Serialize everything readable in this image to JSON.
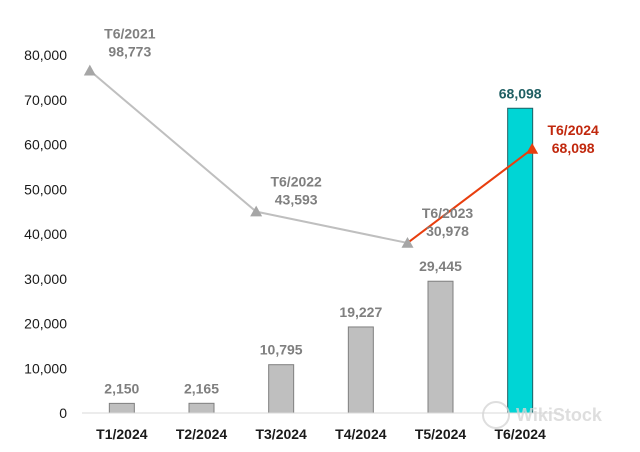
{
  "chart_data": {
    "type": "bar",
    "categories": [
      "T1/2024",
      "T2/2024",
      "T3/2024",
      "T4/2024",
      "T5/2024",
      "T6/2024"
    ],
    "ylim": [
      0,
      80000
    ],
    "yticks": [
      0,
      10000,
      20000,
      30000,
      40000,
      50000,
      60000,
      70000,
      80000
    ],
    "ytick_labels": [
      "0",
      "10,000",
      "20,000",
      "30,000",
      "40,000",
      "50,000",
      "60,000",
      "70,000",
      "80,000"
    ],
    "grid": false,
    "bars": {
      "values": [
        2150,
        2165,
        10795,
        19227,
        29445,
        68098
      ],
      "labels": [
        "2,150",
        "2,165",
        "10,795",
        "19,227",
        "29,445",
        "68,098"
      ],
      "color": "#bfbfbf",
      "highlight_index": 5,
      "highlight_color": "#00d5d5"
    },
    "yoy_line": {
      "points": [
        {
          "label": "T6/2021",
          "value_label": "98,773",
          "value": 98773,
          "y_plot": 76500
        },
        {
          "label": "T6/2022",
          "value_label": "43,593",
          "value": 43593,
          "y_plot": 45000
        },
        {
          "label": "T6/2023",
          "value_label": "30,978",
          "value": 30978,
          "y_plot": 38000
        },
        {
          "label": "T6/2024",
          "value_label": "68,098",
          "value": 68098,
          "y_plot": 59000
        }
      ],
      "color": "#bfbfbf",
      "highlight_color": "#e83e0e"
    }
  },
  "watermark": "WikiStock"
}
